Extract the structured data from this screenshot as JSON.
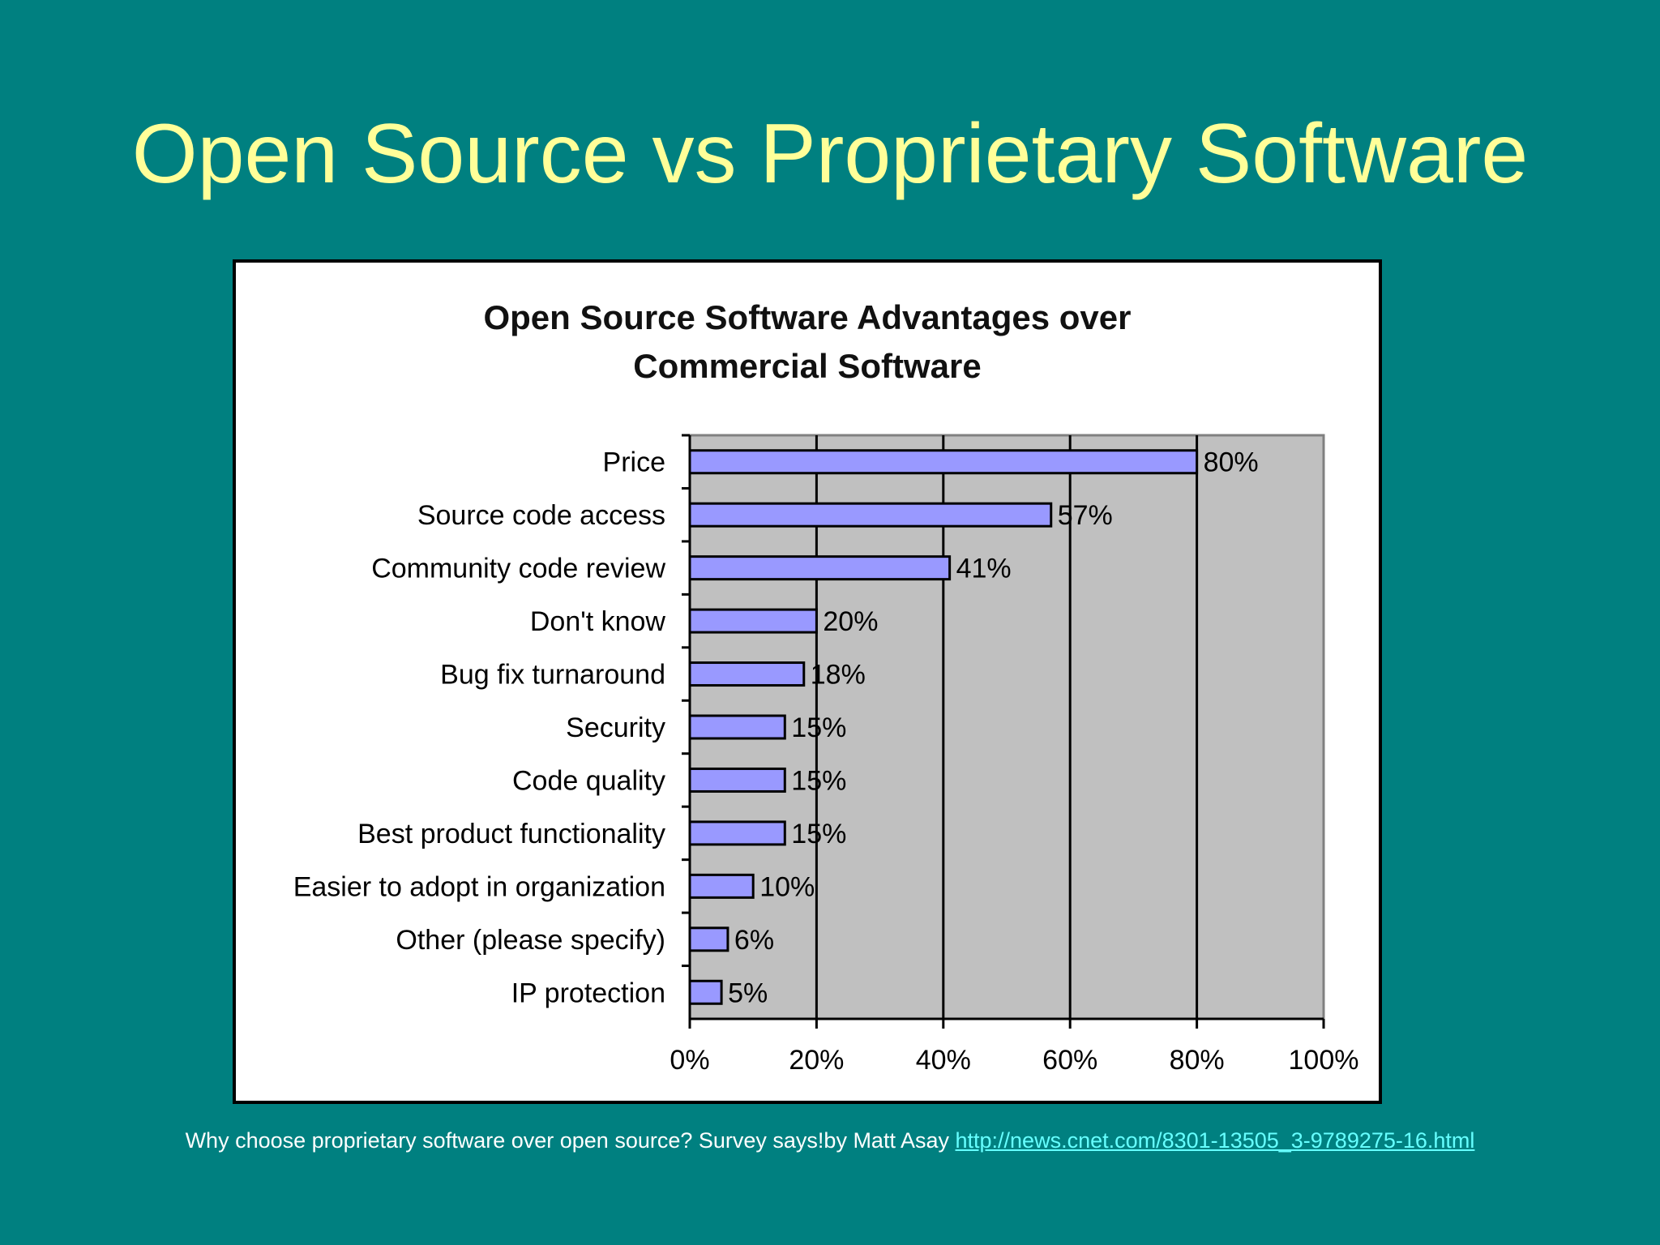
{
  "slide": {
    "title": "Open Source vs Proprietary Software",
    "footer_text": "Why choose proprietary software over open source? Survey says!by Matt Asay ",
    "footer_link": "http://news.cnet.com/8301-13505_3-9789275-16.html"
  },
  "colors": {
    "background": "#008080",
    "title": "#ffff99",
    "bar_fill": "#9999ff",
    "plot_area": "#c0c0c0",
    "link": "#66ffff"
  },
  "chart_data": {
    "type": "bar",
    "orientation": "horizontal",
    "title": "Open Source Software Advantages over Commercial Software",
    "title_lines": [
      "Open Source Software Advantages over",
      "Commercial Software"
    ],
    "categories": [
      "Price",
      "Source code access",
      "Community code review",
      "Don't know",
      "Bug fix turnaround",
      "Security",
      "Code quality",
      "Best product functionality",
      "Easier to adopt in organization",
      "Other (please specify)",
      "IP protection"
    ],
    "values": [
      80,
      57,
      41,
      20,
      18,
      15,
      15,
      15,
      10,
      6,
      5
    ],
    "value_labels": [
      "80%",
      "57%",
      "41%",
      "20%",
      "18%",
      "15%",
      "15%",
      "15%",
      "10%",
      "6%",
      "5%"
    ],
    "xlim": [
      0,
      100
    ],
    "xticks": [
      "0%",
      "20%",
      "40%",
      "60%",
      "80%",
      "100%"
    ],
    "grid": "vertical",
    "legend": "none"
  }
}
